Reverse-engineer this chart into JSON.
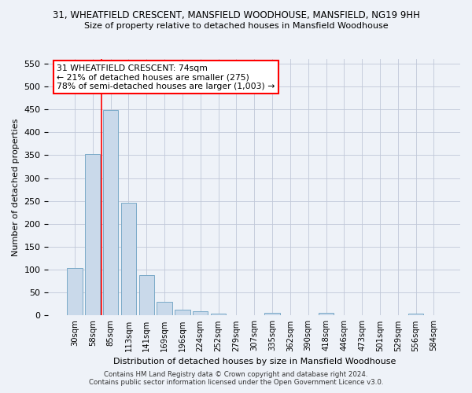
{
  "title_line1": "31, WHEATFIELD CRESCENT, MANSFIELD WOODHOUSE, MANSFIELD, NG19 9HH",
  "title_line2": "Size of property relative to detached houses in Mansfield Woodhouse",
  "xlabel": "Distribution of detached houses by size in Mansfield Woodhouse",
  "ylabel": "Number of detached properties",
  "footnote1": "Contains HM Land Registry data © Crown copyright and database right 2024.",
  "footnote2": "Contains public sector information licensed under the Open Government Licence v3.0.",
  "categories": [
    "30sqm",
    "58sqm",
    "85sqm",
    "113sqm",
    "141sqm",
    "169sqm",
    "196sqm",
    "224sqm",
    "252sqm",
    "279sqm",
    "307sqm",
    "335sqm",
    "362sqm",
    "390sqm",
    "418sqm",
    "446sqm",
    "473sqm",
    "501sqm",
    "529sqm",
    "556sqm",
    "584sqm"
  ],
  "values": [
    103,
    353,
    448,
    246,
    88,
    30,
    13,
    9,
    5,
    0,
    0,
    6,
    0,
    0,
    6,
    0,
    0,
    0,
    0,
    5,
    0
  ],
  "bar_color": "#c9d9ea",
  "bar_edge_color": "#7aaac8",
  "grid_color": "#c0c8d8",
  "bg_color": "#eef2f8",
  "vline_color": "red",
  "vline_x_index": 1.5,
  "annotation_title": "31 WHEATFIELD CRESCENT: 74sqm",
  "annotation_line1": "← 21% of detached houses are smaller (275)",
  "annotation_line2": "78% of semi-detached houses are larger (1,003) →",
  "annotation_box_color": "white",
  "annotation_box_edge": "red",
  "ylim": [
    0,
    560
  ],
  "yticks": [
    0,
    50,
    100,
    150,
    200,
    250,
    300,
    350,
    400,
    450,
    500,
    550
  ]
}
